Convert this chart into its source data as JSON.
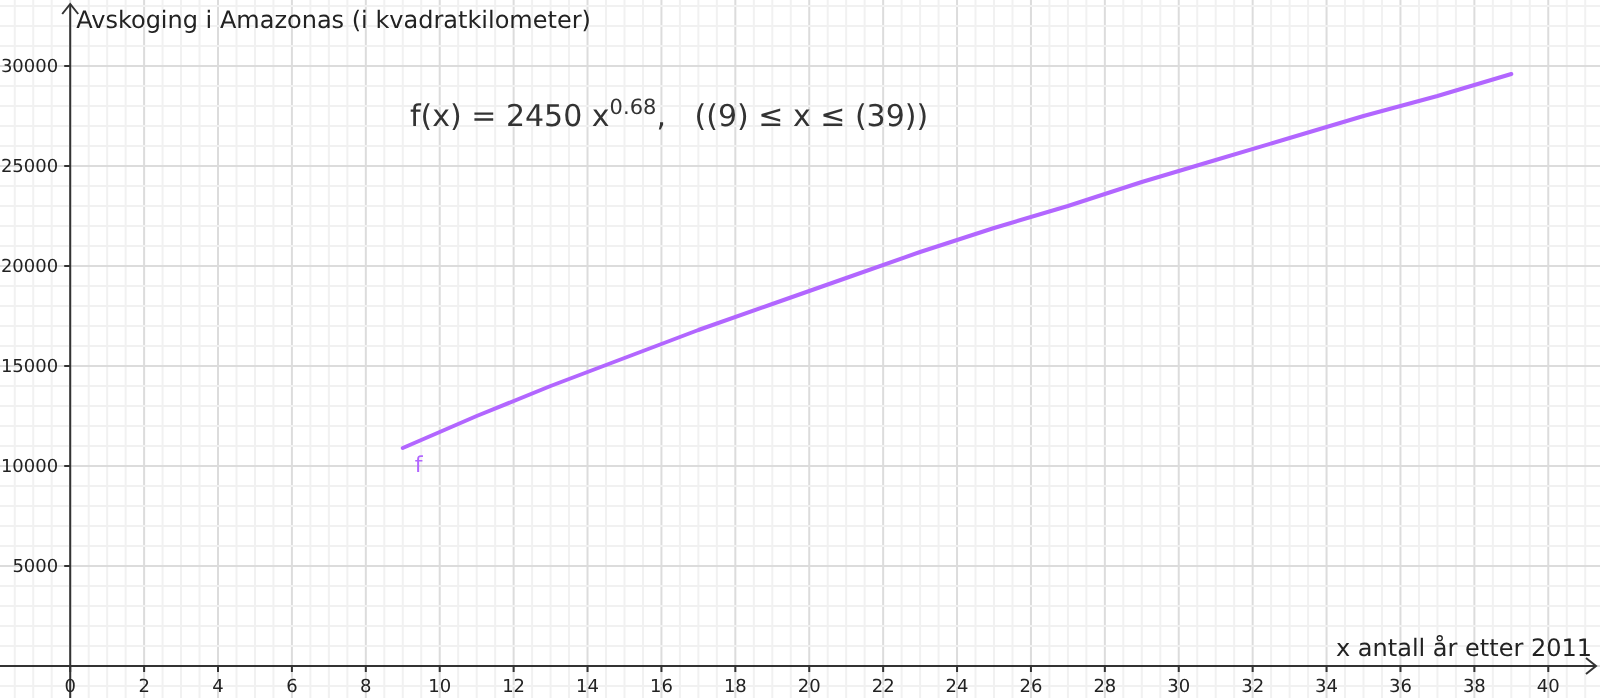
{
  "chart_data": {
    "type": "line",
    "ylabel": "Avskoging i Amazonas (i kvadratkilometer)",
    "xlabel": "x antall år etter 2011",
    "annotations": [
      "f(x) = 2450 x$^{0.68}$,   ((9) ≤ x ≤ (39))"
    ],
    "x": [
      9,
      11,
      13,
      15,
      17,
      19,
      21,
      23,
      25,
      27,
      29,
      31,
      33,
      35,
      37,
      39
    ],
    "series": [
      {
        "name": "f",
        "color": "#b266ff",
        "values": [
          10900,
          12500,
          14000,
          15400,
          16800,
          18100,
          19400,
          20700,
          21900,
          23000,
          24200,
          25300,
          26400,
          27500,
          28500,
          29600
        ]
      }
    ],
    "xlim": [
      -1.9,
      41.4
    ],
    "ylim": [
      -1600,
      33300
    ],
    "xticks": [
      0,
      2,
      4,
      6,
      8,
      10,
      12,
      14,
      16,
      18,
      20,
      22,
      24,
      26,
      28,
      30,
      32,
      34,
      36,
      38,
      40
    ],
    "yticks": [
      5000,
      10000,
      15000,
      20000,
      25000,
      30000
    ],
    "grid": true,
    "marker": "none",
    "line_style": "solid"
  }
}
